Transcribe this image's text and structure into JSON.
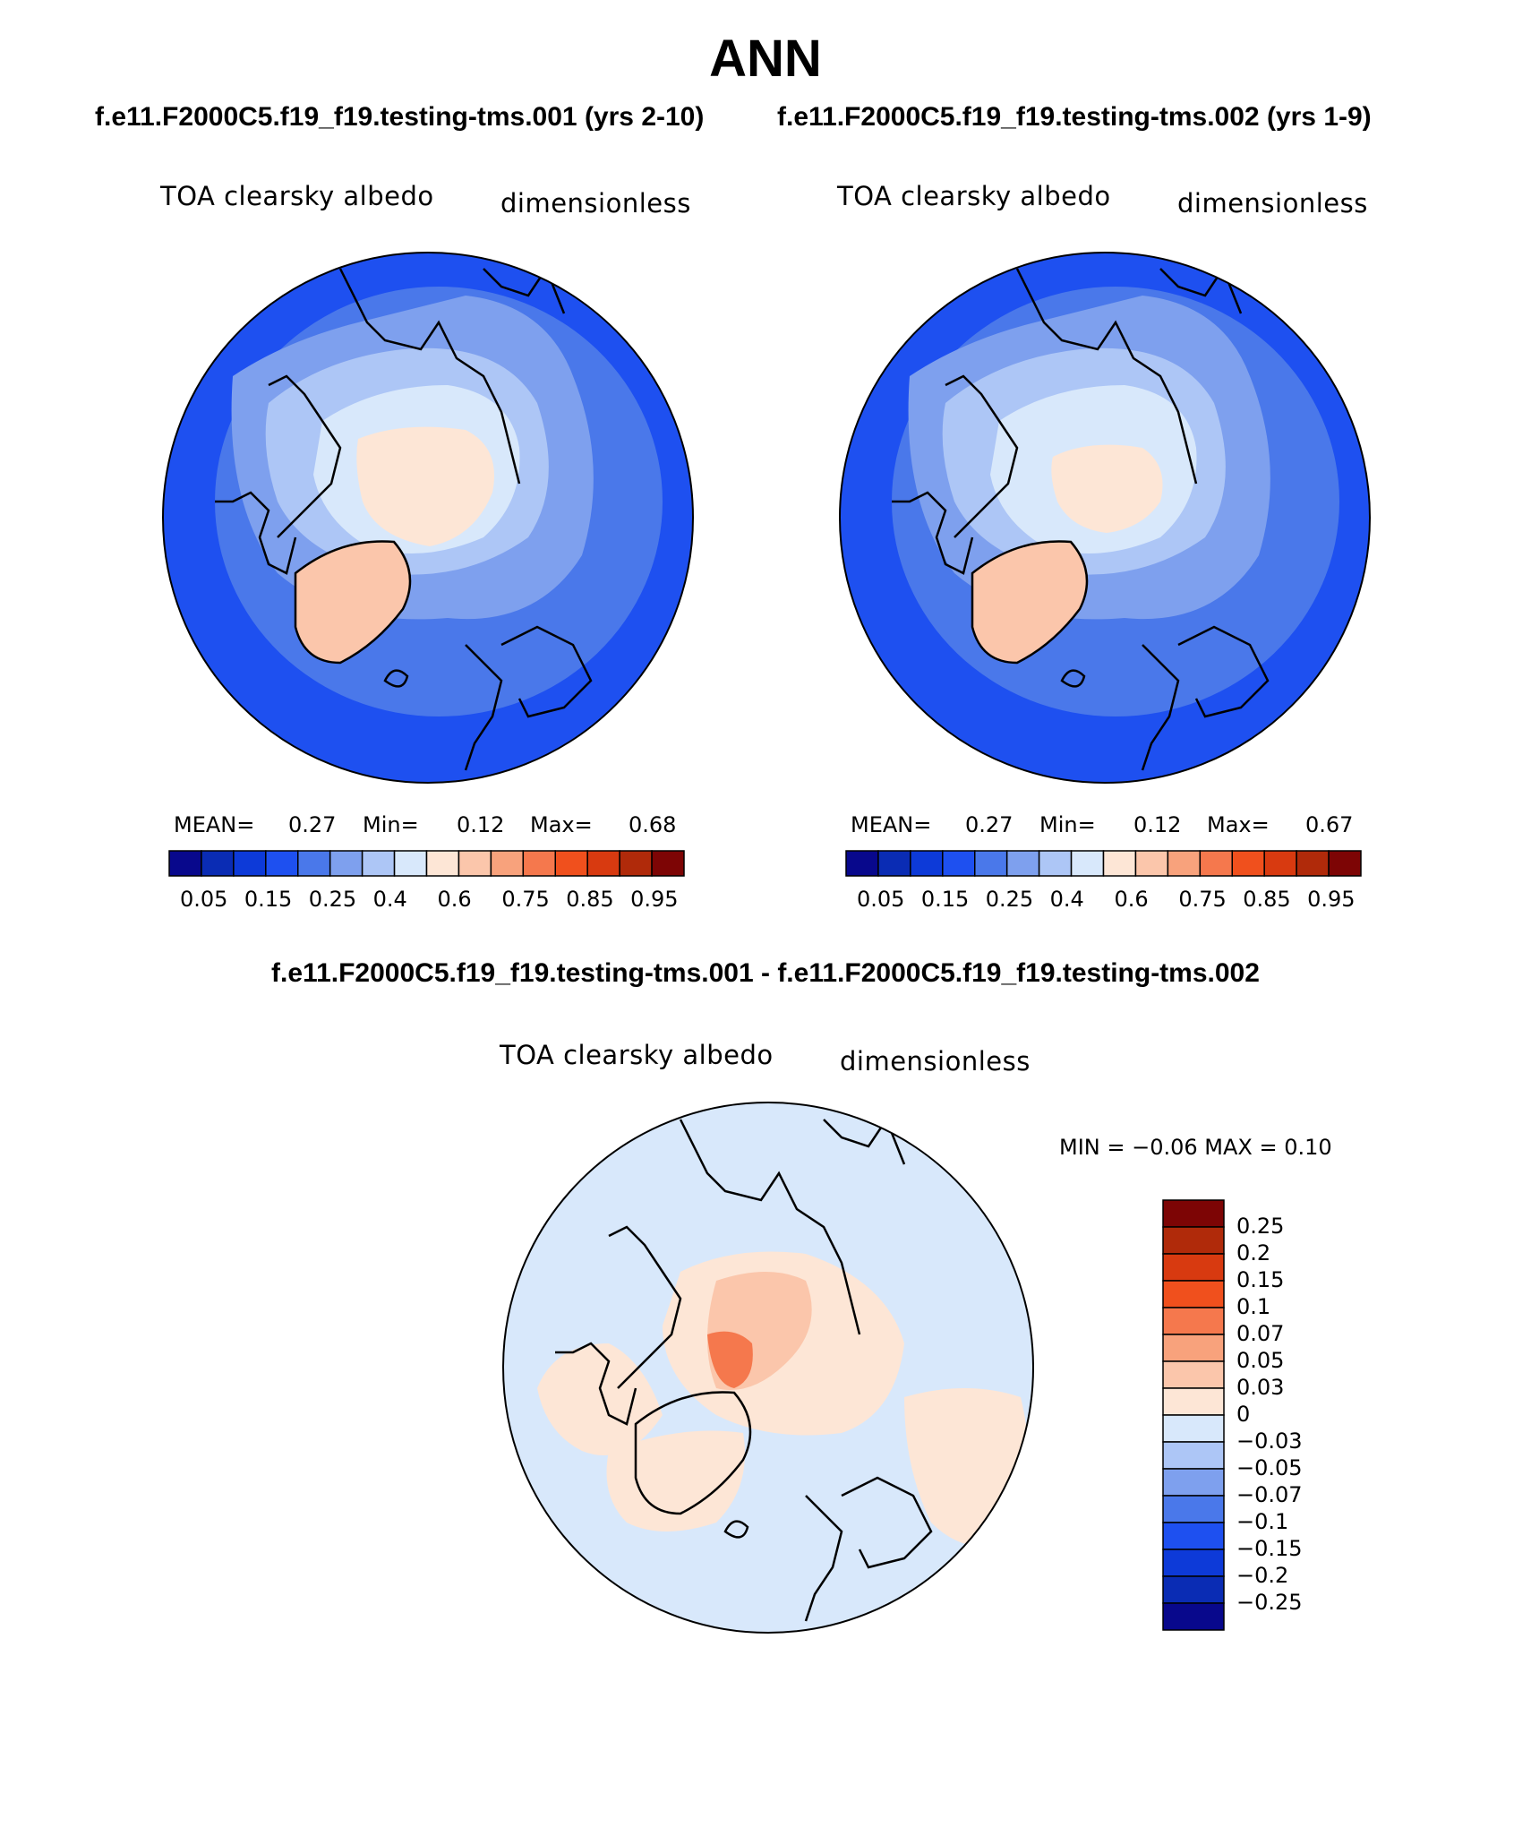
{
  "title": "ANN",
  "case1_title": "f.e11.F2000C5.f19_f19.testing-tms.001 (yrs 2-10)",
  "case2_title": "f.e11.F2000C5.f19_f19.testing-tms.002 (yrs 1-9)",
  "diff_title": "f.e11.F2000C5.f19_f19.testing-tms.001 - f.e11.F2000C5.f19_f19.testing-tms.002",
  "panels": [
    {
      "variable": "TOA clearsky albedo",
      "units": "dimensionless",
      "mean_label": "MEAN=",
      "mean": "0.27",
      "min_label": "Min=",
      "min": "0.12",
      "max_label": "Max=",
      "max": "0.68"
    },
    {
      "variable": "TOA clearsky albedo",
      "units": "dimensionless",
      "mean_label": "MEAN=",
      "mean": "0.27",
      "min_label": "Min=",
      "min": "0.12",
      "max_label": "Max=",
      "max": "0.67"
    }
  ],
  "diff_panel": {
    "variable": "TOA clearsky albedo",
    "units": "dimensionless",
    "minmax": "MIN =   −0.06 MAX =     0.10"
  },
  "colorbar": {
    "colors": [
      "#08088c",
      "#0a2cb4",
      "#0d3ad8",
      "#1e50f0",
      "#4a78ea",
      "#7ea0ee",
      "#adc6f6",
      "#d8e8fb",
      "#fde6d6",
      "#fbc6ab",
      "#f8a27c",
      "#f5784d",
      "#f0501d",
      "#d83a10",
      "#b02a0a",
      "#7d0505"
    ],
    "labels": [
      "0.05",
      "0.15",
      "0.25",
      "0.4",
      "0.6",
      "0.75",
      "0.85",
      "0.95"
    ]
  },
  "diff_colorbar": {
    "colors": [
      "#08088c",
      "#0a2cb4",
      "#0d3ad8",
      "#1e50f0",
      "#4a78ea",
      "#7ea0ee",
      "#adc6f6",
      "#d8e8fb",
      "#fde6d6",
      "#fbc6ab",
      "#f8a27c",
      "#f5784d",
      "#f0501d",
      "#d83a10",
      "#b02a0a",
      "#7d0505"
    ],
    "labels": [
      "0.25",
      "0.2",
      "0.15",
      "0.1",
      "0.07",
      "0.05",
      "0.03",
      "0",
      "−0.03",
      "−0.05",
      "−0.07",
      "−0.1",
      "−0.15",
      "−0.2",
      "−0.25"
    ]
  }
}
